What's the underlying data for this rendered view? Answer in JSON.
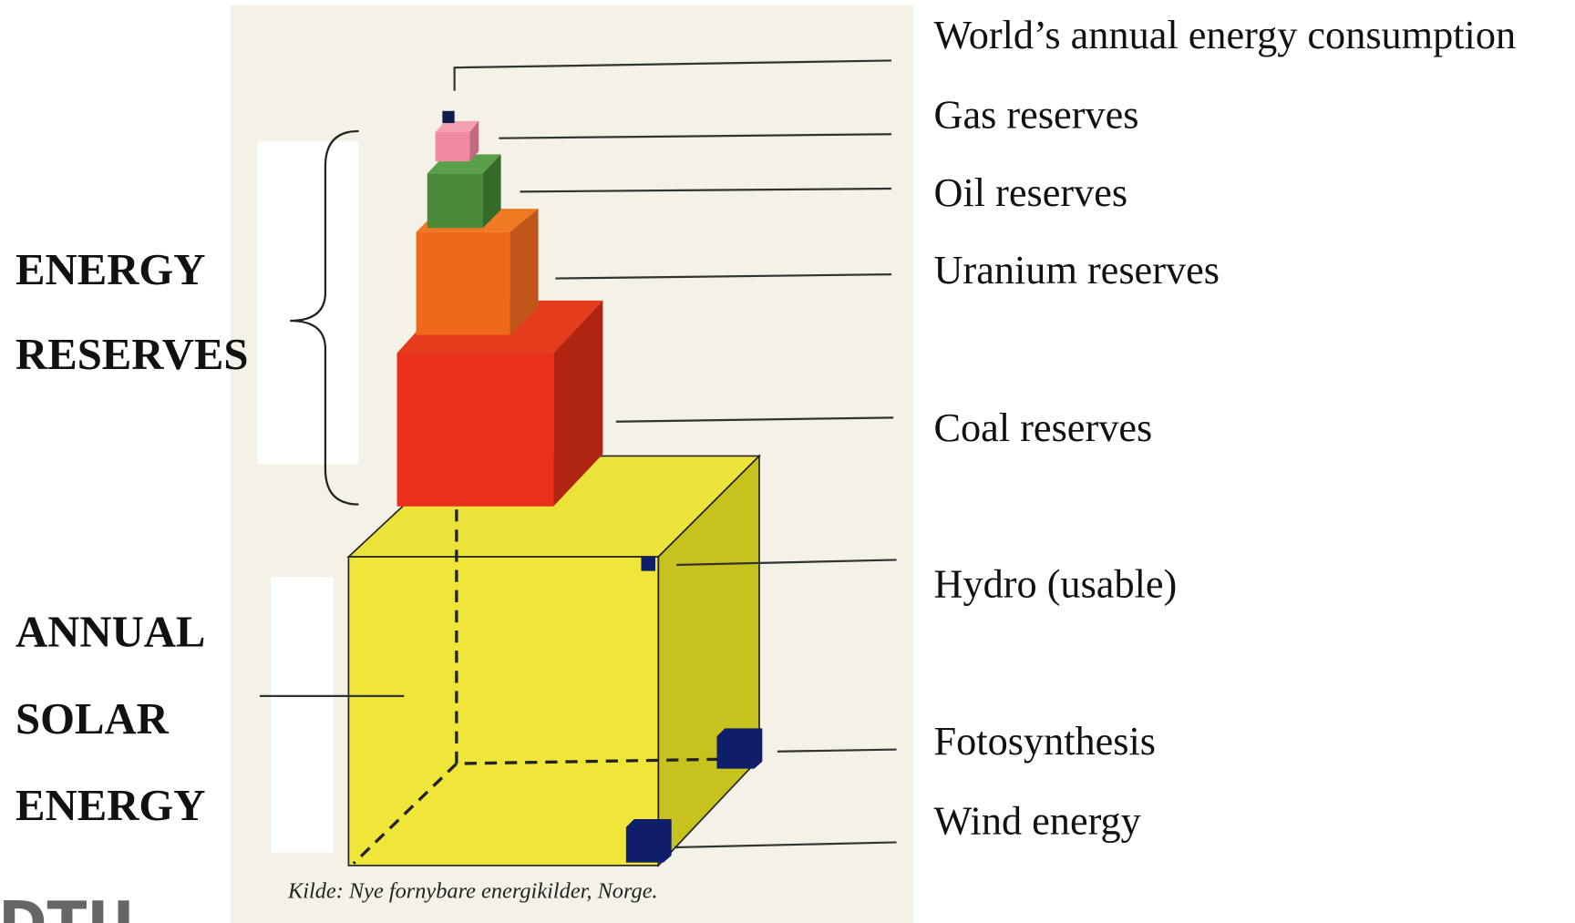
{
  "left_labels": {
    "energy_reserves": [
      "ENERGY",
      "RESERVES"
    ],
    "annual_solar_energy": [
      "ANNUAL",
      "SOLAR",
      "ENERGY"
    ]
  },
  "right_labels": [
    "World’s annual energy consumption",
    "Gas reserves",
    "Oil reserves",
    "Uranium reserves",
    "Coal reserves",
    "Hydro (usable)",
    "Fotosynthesis",
    "Wind energy"
  ],
  "source": "Kilde: Nye fornybare energikilder, Norge.",
  "logo": "DTU"
}
